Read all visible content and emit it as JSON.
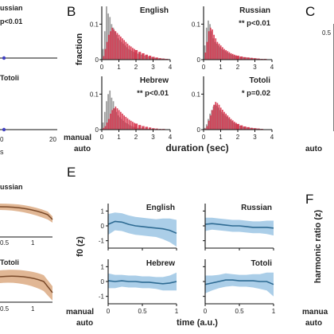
{
  "colors": {
    "manual_hist": "#8a8a8a",
    "auto_hist": "#d6324a",
    "manual_text": "#222222",
    "auto_text_B": "#d6324a",
    "auto_text_C": "#7ed957",
    "auto_text_E": "#5b9bd5",
    "auto_text_F": "#cfcf3a",
    "duration_label": "#d6324a",
    "f0_line": "#2e6b93",
    "f0_band": "#9cc5e4",
    "d_line": "#7a4a2a",
    "d_band": "#d9a57a",
    "dot": "#4040c0",
    "f0_label": "#5b9bd5",
    "harmonic_label": "#cfcf3a"
  },
  "panel_letters": [
    "B",
    "C",
    "E",
    "F"
  ],
  "panelA": {
    "russian_title": "ussian",
    "russian_p": "p<0.01",
    "totoli_title": "Totoli",
    "x_ticks": [
      "0",
      "20"
    ],
    "s_fragment": "s"
  },
  "panelB": {
    "ylabel": "fraction",
    "xlabel": "duration (sec)",
    "legend_manual": "manual",
    "legend_auto": "auto"
  },
  "panelC": {
    "ytick_top": "0.5",
    "legend_auto": "auto"
  },
  "panelD": {
    "russian_title": "ussian",
    "totoli_title": "Totoli",
    "x_ticks": [
      "0.5",
      "1"
    ]
  },
  "panelE": {
    "ylabel": "f0 (z)",
    "xlabel": "time (a.u.)",
    "legend_manual": "manual",
    "legend_auto": "auto"
  },
  "panelF": {
    "ylabel": "harmonic ratio (z)",
    "legend_manual": "manua",
    "legend_auto": "auto"
  },
  "chart_data": [
    {
      "type": "bar",
      "panel": "B",
      "title": "English",
      "annotation": "",
      "x": [
        0.1,
        0.2,
        0.3,
        0.4,
        0.5,
        0.6,
        0.7,
        0.8,
        0.9,
        1.0,
        1.1,
        1.2,
        1.3,
        1.4,
        1.5,
        1.6,
        1.7,
        1.8,
        1.9,
        2.0,
        2.2,
        2.4,
        2.6,
        2.8,
        3.0,
        3.2,
        3.4,
        3.6,
        3.8
      ],
      "series": [
        {
          "name": "manual",
          "values": [
            0.03,
            0.08,
            0.15,
            0.13,
            0.12,
            0.1,
            0.09,
            0.08,
            0.07,
            0.06,
            0.055,
            0.05,
            0.045,
            0.04,
            0.035,
            0.03,
            0.028,
            0.025,
            0.022,
            0.02,
            0.017,
            0.014,
            0.011,
            0.009,
            0.007,
            0.005,
            0.004,
            0.003,
            0.002
          ]
        },
        {
          "name": "auto",
          "values": [
            0.01,
            0.03,
            0.05,
            0.07,
            0.08,
            0.09,
            0.085,
            0.08,
            0.075,
            0.07,
            0.065,
            0.06,
            0.055,
            0.05,
            0.045,
            0.04,
            0.037,
            0.033,
            0.03,
            0.027,
            0.022,
            0.018,
            0.014,
            0.011,
            0.008,
            0.006,
            0.004,
            0.003,
            0.002
          ]
        }
      ],
      "xlim": [
        0,
        4
      ],
      "ylim": [
        0,
        0.15
      ],
      "x_ticks": [
        "0",
        "1",
        "2",
        "3",
        "4"
      ],
      "y_ticks": [
        "0",
        "0.1"
      ]
    },
    {
      "type": "bar",
      "panel": "B",
      "title": "Russian",
      "annotation": "** p<0.01",
      "x": [
        0.1,
        0.2,
        0.3,
        0.4,
        0.5,
        0.6,
        0.7,
        0.8,
        0.9,
        1.0,
        1.1,
        1.2,
        1.3,
        1.4,
        1.5,
        1.6,
        1.7,
        1.8,
        1.9,
        2.0,
        2.2,
        2.4,
        2.6,
        2.8,
        3.0,
        3.2,
        3.4,
        3.6,
        3.8
      ],
      "series": [
        {
          "name": "manual",
          "values": [
            0.04,
            0.09,
            0.11,
            0.1,
            0.08,
            0.06,
            0.05,
            0.045,
            0.04,
            0.035,
            0.03,
            0.027,
            0.024,
            0.021,
            0.018,
            0.016,
            0.014,
            0.012,
            0.011,
            0.01,
            0.008,
            0.007,
            0.006,
            0.005,
            0.004,
            0.003,
            0.002,
            0.002,
            0.001
          ]
        },
        {
          "name": "auto",
          "values": [
            0.02,
            0.05,
            0.08,
            0.09,
            0.085,
            0.07,
            0.06,
            0.05,
            0.045,
            0.04,
            0.035,
            0.03,
            0.027,
            0.024,
            0.021,
            0.018,
            0.016,
            0.014,
            0.012,
            0.011,
            0.009,
            0.007,
            0.006,
            0.005,
            0.004,
            0.003,
            0.002,
            0.002,
            0.001
          ]
        }
      ],
      "xlim": [
        0,
        4
      ],
      "ylim": [
        0,
        0.15
      ],
      "x_ticks": [
        "0",
        "1",
        "2",
        "3",
        "4"
      ],
      "y_ticks": [
        "0",
        "0.1"
      ]
    },
    {
      "type": "bar",
      "panel": "B",
      "title": "Hebrew",
      "annotation": "** p<0.01",
      "x": [
        0.1,
        0.2,
        0.3,
        0.4,
        0.5,
        0.6,
        0.7,
        0.8,
        0.9,
        1.0,
        1.1,
        1.2,
        1.3,
        1.4,
        1.5,
        1.6,
        1.7,
        1.8,
        1.9,
        2.0,
        2.2,
        2.4,
        2.6,
        2.8,
        3.0,
        3.2,
        3.4,
        3.6,
        3.8
      ],
      "series": [
        {
          "name": "manual",
          "values": [
            0.02,
            0.05,
            0.08,
            0.1,
            0.11,
            0.09,
            0.08,
            0.06,
            0.05,
            0.04,
            0.035,
            0.03,
            0.025,
            0.02,
            0.018,
            0.015,
            0.012,
            0.01,
            0.008,
            0.007,
            0.005,
            0.004,
            0.003,
            0.002,
            0.002,
            0.001,
            0.001,
            0.001,
            0.001
          ]
        },
        {
          "name": "auto",
          "values": [
            0.005,
            0.01,
            0.02,
            0.03,
            0.045,
            0.055,
            0.06,
            0.065,
            0.06,
            0.055,
            0.05,
            0.045,
            0.04,
            0.036,
            0.032,
            0.028,
            0.025,
            0.022,
            0.019,
            0.017,
            0.013,
            0.01,
            0.008,
            0.006,
            0.004,
            0.003,
            0.002,
            0.002,
            0.001
          ]
        }
      ],
      "xlim": [
        0,
        4
      ],
      "ylim": [
        0,
        0.15
      ],
      "x_ticks": [
        "0",
        "1",
        "2",
        "3",
        "4"
      ],
      "y_ticks": [
        "0",
        "0.1"
      ]
    },
    {
      "type": "bar",
      "panel": "B",
      "title": "Totoli",
      "annotation": "* p=0.02",
      "x": [
        0.1,
        0.2,
        0.3,
        0.4,
        0.5,
        0.6,
        0.7,
        0.8,
        0.9,
        1.0,
        1.1,
        1.2,
        1.3,
        1.4,
        1.5,
        1.6,
        1.7,
        1.8,
        1.9,
        2.0,
        2.2,
        2.4,
        2.6,
        2.8,
        3.0,
        3.2,
        3.4,
        3.6,
        3.8
      ],
      "series": [
        {
          "name": "manual",
          "values": [
            0.005,
            0.015,
            0.03,
            0.045,
            0.055,
            0.065,
            0.07,
            0.068,
            0.062,
            0.055,
            0.05,
            0.045,
            0.04,
            0.036,
            0.032,
            0.028,
            0.024,
            0.02,
            0.017,
            0.015,
            0.011,
            0.008,
            0.006,
            0.005,
            0.004,
            0.003,
            0.002,
            0.001,
            0.001
          ]
        },
        {
          "name": "auto",
          "values": [
            0.003,
            0.01,
            0.025,
            0.04,
            0.055,
            0.07,
            0.078,
            0.075,
            0.07,
            0.062,
            0.056,
            0.05,
            0.045,
            0.04,
            0.035,
            0.03,
            0.026,
            0.022,
            0.019,
            0.016,
            0.012,
            0.009,
            0.007,
            0.005,
            0.004,
            0.003,
            0.002,
            0.001,
            0.001
          ]
        }
      ],
      "xlim": [
        0,
        4
      ],
      "ylim": [
        0,
        0.15
      ],
      "x_ticks": [
        "0",
        "1",
        "2",
        "3",
        "4"
      ],
      "y_ticks": [
        "0",
        "0.1"
      ]
    },
    {
      "type": "area",
      "panel": "E",
      "title": "English",
      "x": [
        0,
        0.1,
        0.2,
        0.3,
        0.4,
        0.5,
        0.6,
        0.7,
        0.8,
        0.9,
        1.0
      ],
      "series": [
        {
          "name": "auto",
          "values": [
            0.1,
            0.3,
            0.25,
            0.1,
            0.0,
            -0.05,
            -0.1,
            -0.15,
            -0.2,
            -0.3,
            -0.5
          ],
          "band": [
            0.7,
            0.6,
            0.6,
            0.6,
            0.6,
            0.6,
            0.6,
            0.6,
            0.7,
            0.8,
            0.9
          ]
        }
      ],
      "xlim": [
        0,
        1
      ],
      "ylim": [
        -1.5,
        1.5
      ],
      "x_ticks": [],
      "y_ticks": [
        "-1",
        "0",
        "1"
      ]
    },
    {
      "type": "area",
      "panel": "E",
      "title": "Russian",
      "x": [
        0,
        0.1,
        0.2,
        0.3,
        0.4,
        0.5,
        0.6,
        0.7,
        0.8,
        0.9,
        1.0
      ],
      "series": [
        {
          "name": "auto",
          "values": [
            0.1,
            0.15,
            0.1,
            0.05,
            0.0,
            0.0,
            -0.05,
            -0.1,
            -0.1,
            -0.1,
            -0.15
          ],
          "band": [
            0.45,
            0.4,
            0.4,
            0.4,
            0.4,
            0.4,
            0.4,
            0.4,
            0.4,
            0.45,
            0.5
          ]
        }
      ],
      "xlim": [
        0,
        1
      ],
      "ylim": [
        -1.5,
        1.5
      ],
      "x_ticks": [],
      "y_ticks": []
    },
    {
      "type": "area",
      "panel": "E",
      "title": "Hebrew",
      "x": [
        0,
        0.1,
        0.2,
        0.3,
        0.4,
        0.5,
        0.6,
        0.7,
        0.8,
        0.9,
        1.0
      ],
      "series": [
        {
          "name": "auto",
          "values": [
            0.05,
            0.0,
            0.05,
            0.0,
            0.0,
            -0.05,
            -0.05,
            -0.1,
            -0.15,
            -0.1,
            0.0
          ],
          "band": [
            0.5,
            0.45,
            0.4,
            0.4,
            0.4,
            0.4,
            0.4,
            0.4,
            0.45,
            0.5,
            0.6
          ]
        }
      ],
      "xlim": [
        0,
        1
      ],
      "ylim": [
        -1.5,
        1.5
      ],
      "x_ticks": [
        "0",
        "0.5",
        "1"
      ],
      "y_ticks": [
        "-1",
        "0",
        "1"
      ]
    },
    {
      "type": "area",
      "panel": "E",
      "title": "Totoli",
      "x": [
        0,
        0.1,
        0.2,
        0.3,
        0.4,
        0.5,
        0.6,
        0.7,
        0.8,
        0.9,
        1.0
      ],
      "series": [
        {
          "name": "auto",
          "values": [
            -0.2,
            -0.1,
            0.0,
            0.1,
            0.1,
            0.05,
            0.05,
            0.05,
            0.0,
            0.0,
            -0.2
          ],
          "band": [
            0.6,
            0.5,
            0.45,
            0.45,
            0.4,
            0.4,
            0.4,
            0.45,
            0.5,
            0.6,
            0.8
          ]
        }
      ],
      "xlim": [
        0,
        1
      ],
      "ylim": [
        -1.5,
        1.5
      ],
      "x_ticks": [
        "0",
        "0.5",
        "1"
      ],
      "y_ticks": []
    }
  ]
}
